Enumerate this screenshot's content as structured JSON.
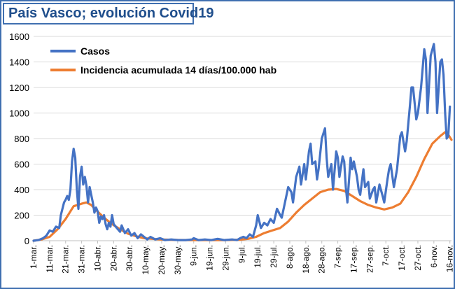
{
  "chart_data": {
    "type": "line",
    "title": "País Vasco; evolución Covid19",
    "ylim": [
      0,
      1600
    ],
    "y_ticks": [
      "0",
      "200",
      "400",
      "600",
      "800",
      "1000",
      "1200",
      "1400",
      "1600"
    ],
    "x_tick_labels": [
      "1-mar.",
      "11-mar.",
      "21-mar.",
      "31-mar.",
      "10-abr.",
      "20-abr.",
      "30-abr.",
      "10-may.",
      "20-may.",
      "30-may.",
      "9-jun.",
      "19-jun.",
      "29-jun.",
      "9-jul.",
      "19-jul.",
      "29-jul.",
      "8-ago.",
      "18-ago.",
      "28-ago.",
      "7-sep.",
      "17-sep.",
      "27-sep.",
      "7-oct.",
      "17-oct.",
      "27-oct.",
      "6-nov.",
      "16-nov."
    ],
    "x_start": "2020-03-01",
    "x_end": "2020-11-17",
    "grid": "horizontal",
    "legend_position": "top-left",
    "series": [
      {
        "name": "Casos",
        "color": "#4472c4",
        "points": [
          [
            "2020-03-01",
            0
          ],
          [
            "2020-03-04",
            5
          ],
          [
            "2020-03-07",
            20
          ],
          [
            "2020-03-09",
            40
          ],
          [
            "2020-03-11",
            80
          ],
          [
            "2020-03-13",
            70
          ],
          [
            "2020-03-15",
            110
          ],
          [
            "2020-03-17",
            100
          ],
          [
            "2020-03-18",
            200
          ],
          [
            "2020-03-19",
            250
          ],
          [
            "2020-03-20",
            300
          ],
          [
            "2020-03-21",
            320
          ],
          [
            "2020-03-22",
            350
          ],
          [
            "2020-03-23",
            320
          ],
          [
            "2020-03-24",
            400
          ],
          [
            "2020-03-25",
            620
          ],
          [
            "2020-03-26",
            720
          ],
          [
            "2020-03-27",
            650
          ],
          [
            "2020-03-28",
            400
          ],
          [
            "2020-03-29",
            250
          ],
          [
            "2020-03-30",
            500
          ],
          [
            "2020-03-31",
            580
          ],
          [
            "2020-04-01",
            440
          ],
          [
            "2020-04-02",
            500
          ],
          [
            "2020-04-03",
            430
          ],
          [
            "2020-04-04",
            300
          ],
          [
            "2020-04-05",
            420
          ],
          [
            "2020-04-06",
            360
          ],
          [
            "2020-04-07",
            300
          ],
          [
            "2020-04-08",
            220
          ],
          [
            "2020-04-09",
            260
          ],
          [
            "2020-04-10",
            230
          ],
          [
            "2020-04-11",
            140
          ],
          [
            "2020-04-12",
            190
          ],
          [
            "2020-04-13",
            170
          ],
          [
            "2020-04-14",
            200
          ],
          [
            "2020-04-15",
            130
          ],
          [
            "2020-04-16",
            90
          ],
          [
            "2020-04-17",
            140
          ],
          [
            "2020-04-18",
            110
          ],
          [
            "2020-04-19",
            200
          ],
          [
            "2020-04-20",
            130
          ],
          [
            "2020-04-22",
            100
          ],
          [
            "2020-04-24",
            70
          ],
          [
            "2020-04-25",
            120
          ],
          [
            "2020-04-27",
            60
          ],
          [
            "2020-04-29",
            90
          ],
          [
            "2020-05-01",
            40
          ],
          [
            "2020-05-03",
            60
          ],
          [
            "2020-05-05",
            20
          ],
          [
            "2020-05-07",
            50
          ],
          [
            "2020-05-09",
            30
          ],
          [
            "2020-05-11",
            10
          ],
          [
            "2020-05-13",
            30
          ],
          [
            "2020-05-16",
            10
          ],
          [
            "2020-05-19",
            20
          ],
          [
            "2020-05-22",
            5
          ],
          [
            "2020-05-26",
            10
          ],
          [
            "2020-05-30",
            5
          ],
          [
            "2020-06-04",
            5
          ],
          [
            "2020-06-08",
            10
          ],
          [
            "2020-06-09",
            20
          ],
          [
            "2020-06-12",
            5
          ],
          [
            "2020-06-16",
            10
          ],
          [
            "2020-06-20",
            5
          ],
          [
            "2020-06-24",
            15
          ],
          [
            "2020-06-28",
            5
          ],
          [
            "2020-07-03",
            10
          ],
          [
            "2020-07-06",
            5
          ],
          [
            "2020-07-08",
            20
          ],
          [
            "2020-07-10",
            30
          ],
          [
            "2020-07-12",
            20
          ],
          [
            "2020-07-14",
            50
          ],
          [
            "2020-07-16",
            30
          ],
          [
            "2020-07-18",
            120
          ],
          [
            "2020-07-19",
            200
          ],
          [
            "2020-07-20",
            150
          ],
          [
            "2020-07-21",
            100
          ],
          [
            "2020-07-23",
            140
          ],
          [
            "2020-07-25",
            120
          ],
          [
            "2020-07-27",
            170
          ],
          [
            "2020-07-29",
            140
          ],
          [
            "2020-07-31",
            250
          ],
          [
            "2020-08-02",
            200
          ],
          [
            "2020-08-03",
            180
          ],
          [
            "2020-08-05",
            300
          ],
          [
            "2020-08-07",
            420
          ],
          [
            "2020-08-09",
            380
          ],
          [
            "2020-08-10",
            300
          ],
          [
            "2020-08-12",
            500
          ],
          [
            "2020-08-14",
            580
          ],
          [
            "2020-08-15",
            440
          ],
          [
            "2020-08-17",
            600
          ],
          [
            "2020-08-18",
            480
          ],
          [
            "2020-08-20",
            700
          ],
          [
            "2020-08-21",
            760
          ],
          [
            "2020-08-22",
            600
          ],
          [
            "2020-08-24",
            620
          ],
          [
            "2020-08-25",
            480
          ],
          [
            "2020-08-26",
            560
          ],
          [
            "2020-08-28",
            800
          ],
          [
            "2020-08-30",
            880
          ],
          [
            "2020-08-31",
            650
          ],
          [
            "2020-09-01",
            500
          ],
          [
            "2020-09-03",
            600
          ],
          [
            "2020-09-04",
            400
          ],
          [
            "2020-09-06",
            700
          ],
          [
            "2020-09-07",
            650
          ],
          [
            "2020-09-08",
            500
          ],
          [
            "2020-09-10",
            660
          ],
          [
            "2020-09-11",
            620
          ],
          [
            "2020-09-12",
            420
          ],
          [
            "2020-09-13",
            300
          ],
          [
            "2020-09-15",
            650
          ],
          [
            "2020-09-16",
            560
          ],
          [
            "2020-09-17",
            620
          ],
          [
            "2020-09-19",
            500
          ],
          [
            "2020-09-20",
            400
          ],
          [
            "2020-09-21",
            360
          ],
          [
            "2020-09-23",
            560
          ],
          [
            "2020-09-24",
            420
          ],
          [
            "2020-09-26",
            460
          ],
          [
            "2020-09-27",
            330
          ],
          [
            "2020-09-29",
            400
          ],
          [
            "2020-09-30",
            420
          ],
          [
            "2020-10-01",
            300
          ],
          [
            "2020-10-03",
            440
          ],
          [
            "2020-10-05",
            350
          ],
          [
            "2020-10-06",
            300
          ],
          [
            "2020-10-08",
            480
          ],
          [
            "2020-10-09",
            560
          ],
          [
            "2020-10-10",
            600
          ],
          [
            "2020-10-12",
            420
          ],
          [
            "2020-10-14",
            560
          ],
          [
            "2020-10-16",
            820
          ],
          [
            "2020-10-17",
            850
          ],
          [
            "2020-10-19",
            700
          ],
          [
            "2020-10-20",
            780
          ],
          [
            "2020-10-22",
            1050
          ],
          [
            "2020-10-23",
            1200
          ],
          [
            "2020-10-24",
            1200
          ],
          [
            "2020-10-26",
            950
          ],
          [
            "2020-10-27",
            1000
          ],
          [
            "2020-10-29",
            1200
          ],
          [
            "2020-10-31",
            1500
          ],
          [
            "2020-11-01",
            1420
          ],
          [
            "2020-11-02",
            1000
          ],
          [
            "2020-11-04",
            1450
          ],
          [
            "2020-11-06",
            1540
          ],
          [
            "2020-11-07",
            1400
          ],
          [
            "2020-11-08",
            1000
          ],
          [
            "2020-11-10",
            1400
          ],
          [
            "2020-11-11",
            1420
          ],
          [
            "2020-11-12",
            1300
          ],
          [
            "2020-11-13",
            1000
          ],
          [
            "2020-11-14",
            800
          ],
          [
            "2020-11-15",
            820
          ],
          [
            "2020-11-16",
            1050
          ]
        ]
      },
      {
        "name": "Incidencia acumulada 14 días/100.000 hab",
        "color": "#ed7d31",
        "points": [
          [
            "2020-03-01",
            0
          ],
          [
            "2020-03-06",
            10
          ],
          [
            "2020-03-11",
            30
          ],
          [
            "2020-03-16",
            90
          ],
          [
            "2020-03-21",
            170
          ],
          [
            "2020-03-26",
            270
          ],
          [
            "2020-03-31",
            290
          ],
          [
            "2020-04-03",
            300
          ],
          [
            "2020-04-06",
            280
          ],
          [
            "2020-04-09",
            240
          ],
          [
            "2020-04-14",
            180
          ],
          [
            "2020-04-19",
            130
          ],
          [
            "2020-04-24",
            90
          ],
          [
            "2020-04-29",
            55
          ],
          [
            "2020-05-04",
            35
          ],
          [
            "2020-05-09",
            20
          ],
          [
            "2020-05-14",
            15
          ],
          [
            "2020-05-19",
            10
          ],
          [
            "2020-05-29",
            6
          ],
          [
            "2020-06-08",
            5
          ],
          [
            "2020-06-18",
            5
          ],
          [
            "2020-06-28",
            5
          ],
          [
            "2020-07-08",
            8
          ],
          [
            "2020-07-13",
            15
          ],
          [
            "2020-07-18",
            30
          ],
          [
            "2020-07-23",
            60
          ],
          [
            "2020-07-28",
            80
          ],
          [
            "2020-08-02",
            100
          ],
          [
            "2020-08-07",
            150
          ],
          [
            "2020-08-12",
            220
          ],
          [
            "2020-08-17",
            280
          ],
          [
            "2020-08-22",
            330
          ],
          [
            "2020-08-27",
            380
          ],
          [
            "2020-09-01",
            400
          ],
          [
            "2020-09-06",
            405
          ],
          [
            "2020-09-11",
            390
          ],
          [
            "2020-09-16",
            350
          ],
          [
            "2020-09-21",
            310
          ],
          [
            "2020-09-26",
            280
          ],
          [
            "2020-10-01",
            260
          ],
          [
            "2020-10-06",
            245
          ],
          [
            "2020-10-11",
            260
          ],
          [
            "2020-10-16",
            290
          ],
          [
            "2020-10-21",
            380
          ],
          [
            "2020-10-26",
            500
          ],
          [
            "2020-10-31",
            640
          ],
          [
            "2020-11-05",
            760
          ],
          [
            "2020-11-10",
            820
          ],
          [
            "2020-11-13",
            850
          ],
          [
            "2020-11-15",
            830
          ],
          [
            "2020-11-17",
            790
          ]
        ]
      }
    ]
  }
}
